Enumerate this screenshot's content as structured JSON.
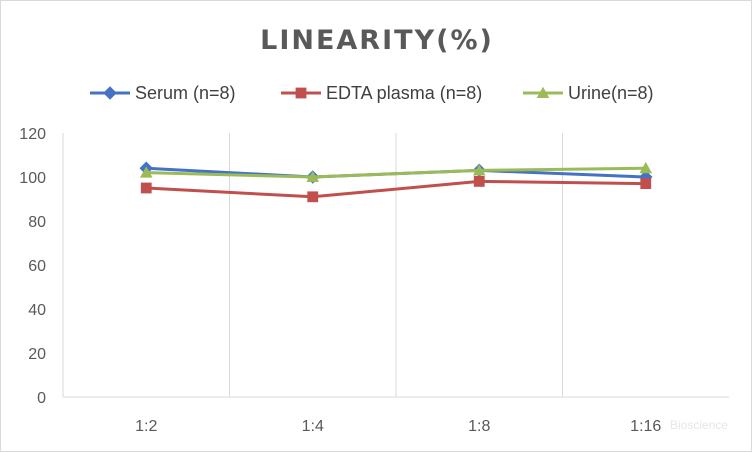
{
  "chart_data": {
    "type": "line",
    "title": "LINEARITY(%)",
    "xlabel": "",
    "ylabel": "",
    "categories": [
      "1:2",
      "1:4",
      "1:8",
      "1:16"
    ],
    "ylim": [
      0,
      120
    ],
    "yticks": [
      0,
      20,
      40,
      60,
      80,
      100,
      120
    ],
    "grid": "vertical lines between categories",
    "legend_position": "top",
    "series": [
      {
        "name": "Serum (n=8)",
        "values": [
          104,
          100,
          103,
          100
        ],
        "color": "#4472C4",
        "marker": "diamond"
      },
      {
        "name": "EDTA plasma (n=8)",
        "values": [
          95,
          91,
          98,
          97
        ],
        "color": "#C0504D",
        "marker": "square"
      },
      {
        "name": "Urine(n=8)",
        "values": [
          102,
          100,
          103,
          104
        ],
        "color": "#9BBB59",
        "marker": "triangle"
      }
    ]
  },
  "watermark": "Bioscience"
}
